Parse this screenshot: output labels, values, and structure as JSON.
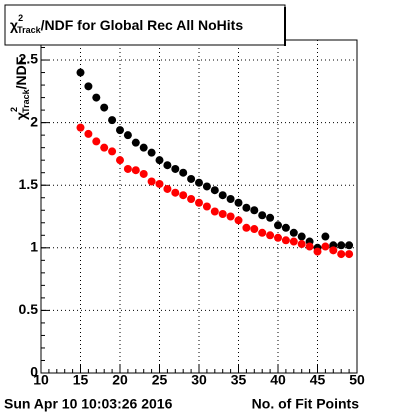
{
  "chart_data": {
    "type": "scatter",
    "title": {
      "symbol": "χ",
      "sup": "2",
      "sub": "Track",
      "rest": "/NDF for Global Rec All NoHits"
    },
    "y_label": {
      "symbol": "χ",
      "sup": "2",
      "sub": "Track",
      "rest": "/NDF"
    },
    "x_label": "No. of Fit Points",
    "timestamp": "Sun Apr 10 10:03:26 2016",
    "x": [
      15,
      16,
      17,
      18,
      19,
      20,
      21,
      22,
      23,
      24,
      25,
      26,
      27,
      28,
      29,
      30,
      31,
      32,
      33,
      34,
      35,
      36,
      37,
      38,
      39,
      40,
      41,
      42,
      43,
      44,
      45,
      46,
      47,
      48,
      49
    ],
    "series": [
      {
        "color": "#000000",
        "values": [
          2.4,
          2.29,
          2.2,
          2.12,
          2.02,
          1.94,
          1.9,
          1.84,
          1.8,
          1.76,
          1.7,
          1.66,
          1.63,
          1.6,
          1.55,
          1.52,
          1.49,
          1.46,
          1.42,
          1.39,
          1.36,
          1.32,
          1.3,
          1.26,
          1.24,
          1.18,
          1.16,
          1.12,
          1.09,
          1.05,
          1.0,
          1.09,
          1.02,
          1.02,
          1.02
        ]
      },
      {
        "color": "#ff0000",
        "values": [
          1.96,
          1.91,
          1.85,
          1.8,
          1.77,
          1.7,
          1.63,
          1.62,
          1.59,
          1.53,
          1.51,
          1.47,
          1.44,
          1.42,
          1.39,
          1.36,
          1.33,
          1.29,
          1.27,
          1.25,
          1.22,
          1.16,
          1.15,
          1.12,
          1.1,
          1.08,
          1.06,
          1.05,
          1.03,
          1.01,
          0.97,
          1.01,
          0.98,
          0.95,
          0.95
        ]
      }
    ],
    "xlim": [
      10,
      50
    ],
    "xticks": [
      10,
      15,
      20,
      25,
      30,
      35,
      40,
      45,
      50
    ],
    "ylim": [
      0,
      2.66
    ],
    "yticks": [
      0,
      0.5,
      1,
      1.5,
      2,
      2.5
    ],
    "grid": true
  }
}
